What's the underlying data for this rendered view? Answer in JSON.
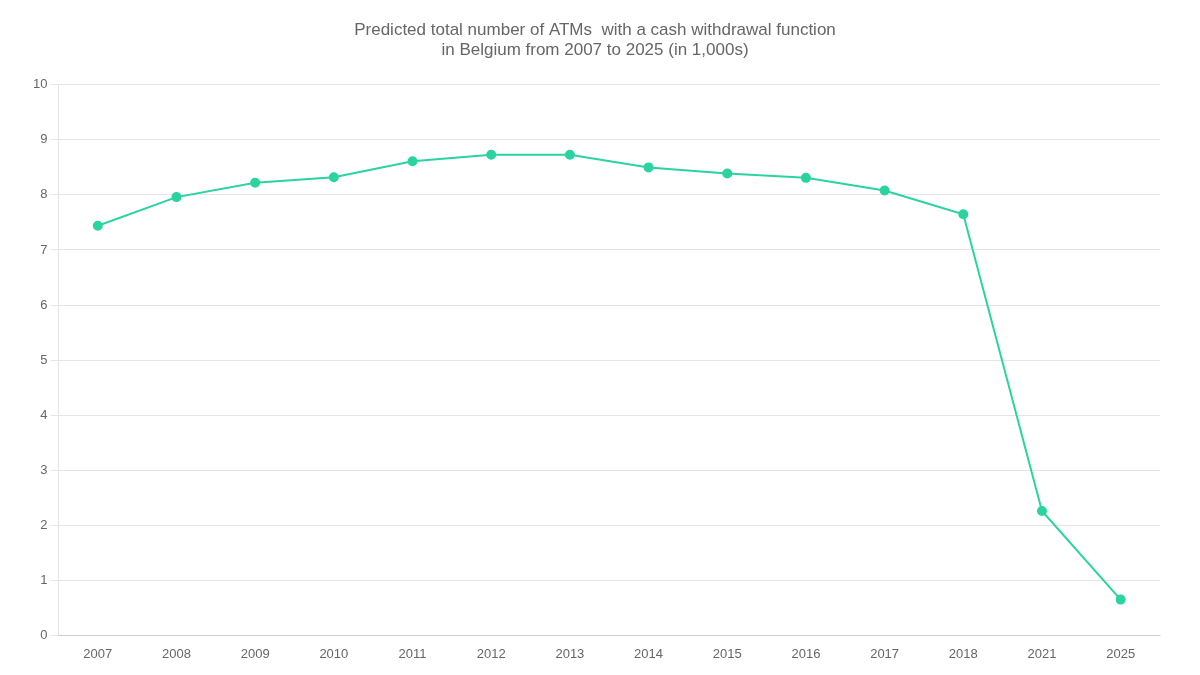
{
  "chart_data": {
    "type": "line",
    "title": "Predicted total number of ATMs  with a cash withdrawal function\nin Belgium from 2007 to 2025 (in 1,000s)",
    "categories": [
      "2007",
      "2008",
      "2009",
      "2010",
      "2011",
      "2012",
      "2013",
      "2014",
      "2015",
      "2016",
      "2017",
      "2018",
      "2021",
      "2025"
    ],
    "values": [
      7.44,
      7.96,
      8.22,
      8.32,
      8.61,
      8.73,
      8.73,
      8.5,
      8.39,
      8.31,
      8.08,
      7.65,
      2.26,
      0.65
    ],
    "color": "#2ad4a0",
    "marker": "circle",
    "ylim": [
      0,
      10
    ],
    "yticks": [
      0,
      1,
      2,
      3,
      4,
      5,
      6,
      7,
      8,
      9,
      10
    ],
    "grid": "y"
  }
}
